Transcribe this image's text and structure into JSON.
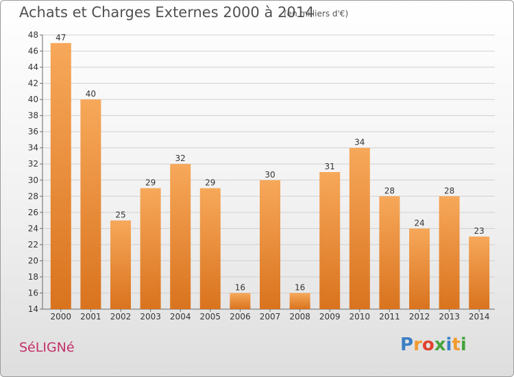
{
  "header": {
    "title": "Achats et Charges Externes 2000 à 2014",
    "subtitle": "(en milliers d'€)"
  },
  "footer": {
    "commune": "SéLIGNé",
    "brand": [
      "P",
      "r",
      "o",
      "x",
      "i",
      "t",
      "i"
    ]
  },
  "colors": {
    "bar_top": "#f7a85a",
    "bar_bottom": "#d9731e",
    "commune": "#c2306a",
    "brand": [
      "#3b7fc4",
      "#f29a2e",
      "#e0412f",
      "#46a33c",
      "#3b7fc4",
      "#f29a2e",
      "#46a33c"
    ]
  },
  "chart_data": {
    "type": "bar",
    "categories": [
      "2000",
      "2001",
      "2002",
      "2003",
      "2004",
      "2005",
      "2006",
      "2007",
      "2008",
      "2009",
      "2010",
      "2011",
      "2012",
      "2013",
      "2014"
    ],
    "values": [
      47,
      40,
      25,
      29,
      32,
      29,
      16,
      30,
      16,
      31,
      34,
      28,
      24,
      28,
      23
    ],
    "data_labels": [
      "47",
      "40",
      "25",
      "29",
      "32",
      "29",
      "16",
      "30",
      "16",
      "31",
      "34",
      "28",
      "24",
      "28",
      "23"
    ],
    "y_ticks": [
      "14",
      "16",
      "18",
      "20",
      "22",
      "24",
      "26",
      "28",
      "30",
      "32",
      "34",
      "36",
      "38",
      "40",
      "42",
      "44",
      "46",
      "48"
    ],
    "ylim": [
      14,
      48
    ],
    "grid": true
  }
}
